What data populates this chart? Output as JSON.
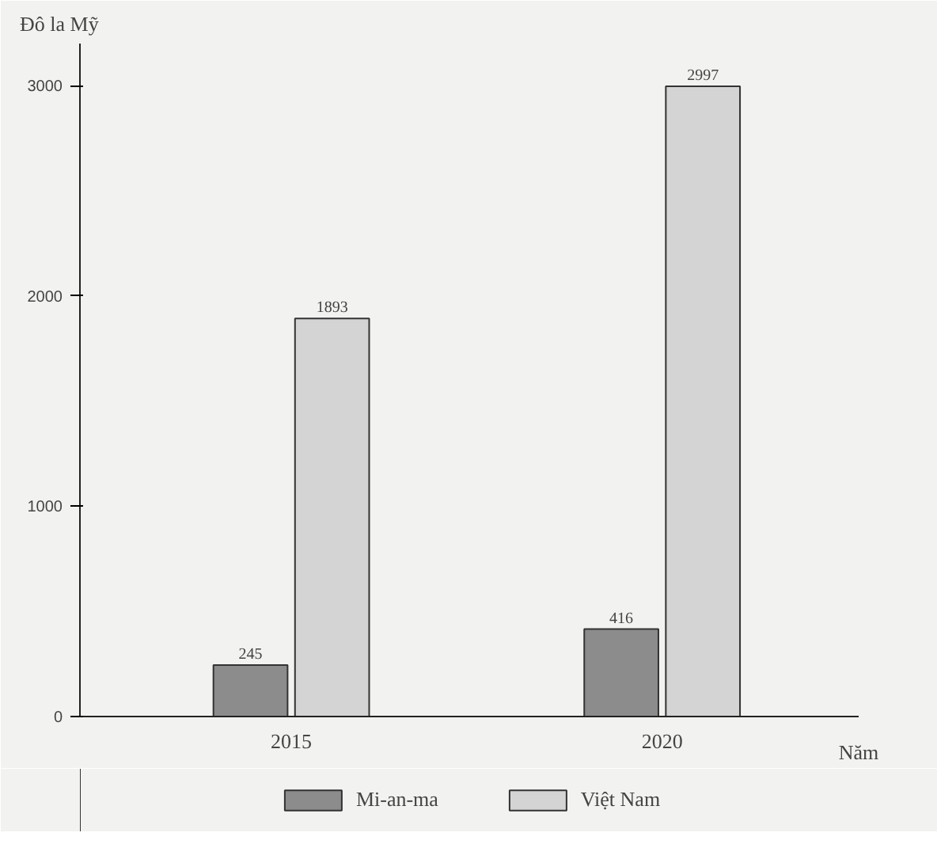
{
  "chart_data": {
    "type": "bar",
    "ylabel": "Đô la Mỹ",
    "xlabel": "Năm",
    "categories": [
      "2015",
      "2020"
    ],
    "series": [
      {
        "name": "Mi-an-ma",
        "color": "#8c8c8c",
        "values": [
          245,
          416
        ]
      },
      {
        "name": "Việt Nam",
        "color": "#d4d4d4",
        "values": [
          1893,
          2997
        ]
      }
    ],
    "ylim": [
      0,
      3200
    ],
    "yticks": [
      0,
      1000,
      2000,
      3000
    ],
    "data_labels": true,
    "grid": false,
    "legend": "bottom"
  }
}
